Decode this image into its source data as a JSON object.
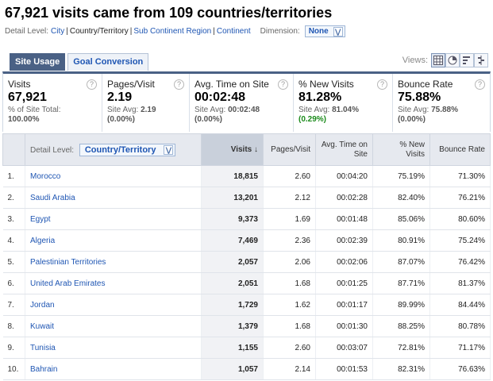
{
  "title": "67,921 visits came from 109 countries/territories",
  "detail_level": {
    "label": "Detail Level:",
    "links": [
      "City",
      "Country/Territory",
      "Sub Continent Region",
      "Continent"
    ],
    "current_index": 1
  },
  "dimension": {
    "label": "Dimension:",
    "value": "None"
  },
  "tabs": [
    {
      "label": "Site Usage",
      "active": true
    },
    {
      "label": "Goal Conversion",
      "active": false
    }
  ],
  "views_label": "Views:",
  "view_icons": [
    "table-view-icon",
    "pie-view-icon",
    "performance-view-icon",
    "comparison-view-icon"
  ],
  "summary": [
    {
      "name": "Visits",
      "value": "67,921",
      "sub1": "% of Site Total:",
      "sub2": "100.00%"
    },
    {
      "name": "Pages/Visit",
      "value": "2.19",
      "sub1": "Site Avg:",
      "sub1b": "2.19",
      "sub2": "(0.00%)"
    },
    {
      "name": "Avg. Time on Site",
      "value": "00:02:48",
      "sub1": "Site Avg:",
      "sub1b": "00:02:48",
      "sub2": "(0.00%)"
    },
    {
      "name": "% New Visits",
      "value": "81.28%",
      "sub1": "Site Avg:",
      "sub1b": "81.04%",
      "sub2": "(0.29%)"
    },
    {
      "name": "Bounce Rate",
      "value": "75.88%",
      "sub1": "Site Avg:",
      "sub1b": "75.88%",
      "sub2": "(0.00%)"
    }
  ],
  "help_glyph": "?",
  "table": {
    "detail_label": "Detail Level:",
    "detail_value": "Country/Territory",
    "columns": {
      "visits": "Visits",
      "pages_visit": "Pages/Visit",
      "avg_time_1": "Avg. Time on",
      "avg_time_2": "Site",
      "new_visits_1": "% New",
      "new_visits_2": "Visits",
      "bounce": "Bounce Rate"
    },
    "sort_glyph": "↓",
    "rows": [
      {
        "idx": "1.",
        "country": "Morocco",
        "visits": "18,815",
        "ppv": "2.60",
        "time": "00:04:20",
        "new": "75.19%",
        "bounce": "71.30%"
      },
      {
        "idx": "2.",
        "country": "Saudi Arabia",
        "visits": "13,201",
        "ppv": "2.12",
        "time": "00:02:28",
        "new": "82.40%",
        "bounce": "76.21%"
      },
      {
        "idx": "3.",
        "country": "Egypt",
        "visits": "9,373",
        "ppv": "1.69",
        "time": "00:01:48",
        "new": "85.06%",
        "bounce": "80.60%"
      },
      {
        "idx": "4.",
        "country": "Algeria",
        "visits": "7,469",
        "ppv": "2.36",
        "time": "00:02:39",
        "new": "80.91%",
        "bounce": "75.24%"
      },
      {
        "idx": "5.",
        "country": "Palestinian Territories",
        "visits": "2,057",
        "ppv": "2.06",
        "time": "00:02:06",
        "new": "87.07%",
        "bounce": "76.42%"
      },
      {
        "idx": "6.",
        "country": "United Arab Emirates",
        "visits": "2,051",
        "ppv": "1.68",
        "time": "00:01:25",
        "new": "87.71%",
        "bounce": "81.37%"
      },
      {
        "idx": "7.",
        "country": "Jordan",
        "visits": "1,729",
        "ppv": "1.62",
        "time": "00:01:17",
        "new": "89.99%",
        "bounce": "84.44%"
      },
      {
        "idx": "8.",
        "country": "Kuwait",
        "visits": "1,379",
        "ppv": "1.68",
        "time": "00:01:30",
        "new": "88.25%",
        "bounce": "80.78%"
      },
      {
        "idx": "9.",
        "country": "Tunisia",
        "visits": "1,155",
        "ppv": "2.60",
        "time": "00:03:07",
        "new": "72.81%",
        "bounce": "71.17%"
      },
      {
        "idx": "10.",
        "country": "Bahrain",
        "visits": "1,057",
        "ppv": "2.14",
        "time": "00:01:53",
        "new": "82.31%",
        "bounce": "76.63%"
      }
    ]
  },
  "colors": {
    "accent": "#4a6185",
    "link": "#1f56b3",
    "positive": "#1a8a1a"
  }
}
